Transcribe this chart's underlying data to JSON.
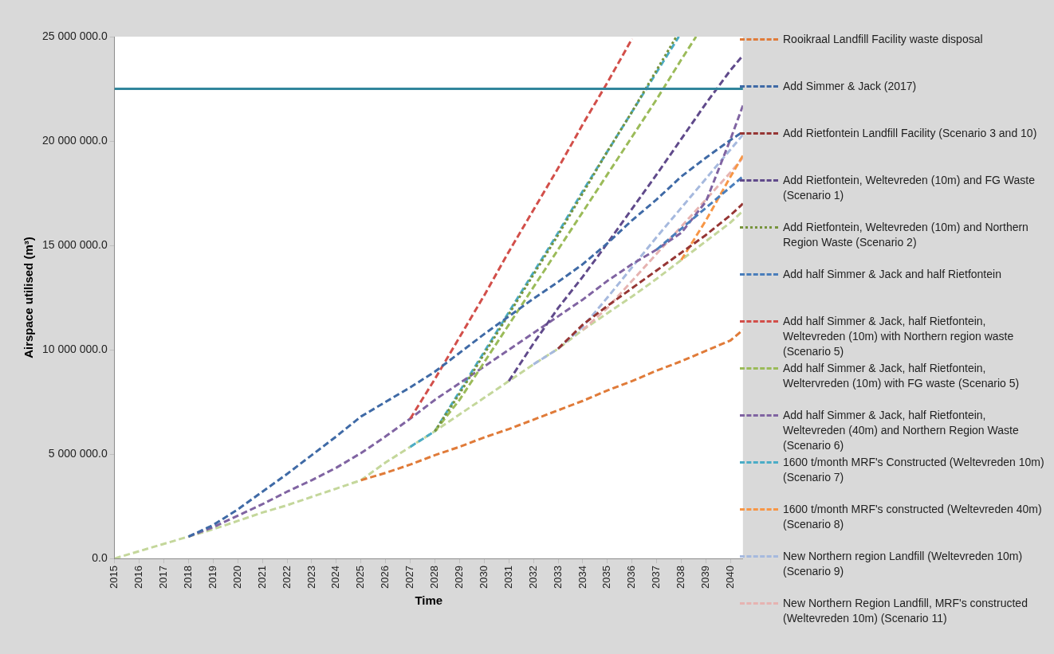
{
  "chart_data": {
    "type": "line",
    "xlabel": "Time",
    "ylabel": "Airspace utilised (m³)",
    "line_style": "dashed",
    "marker": "none",
    "legend": "right",
    "x": [
      2015,
      2016,
      2017,
      2018,
      2019,
      2020,
      2021,
      2022,
      2023,
      2024,
      2025,
      2026,
      2027,
      2028,
      2029,
      2030,
      2031,
      2032,
      2033,
      2034,
      2035,
      2036,
      2037,
      2038,
      2039,
      2040,
      2040.5
    ],
    "xlim": [
      2015,
      2040.5
    ],
    "xticks": [
      2015,
      2016,
      2017,
      2018,
      2019,
      2020,
      2021,
      2022,
      2023,
      2024,
      2025,
      2026,
      2027,
      2028,
      2029,
      2030,
      2031,
      2032,
      2033,
      2034,
      2035,
      2036,
      2037,
      2038,
      2039,
      2040
    ],
    "ylim": [
      0,
      25000000
    ],
    "yticks": [
      {
        "value": 0,
        "label": "0.0"
      },
      {
        "value": 5000000,
        "label": "5 000 000.0"
      },
      {
        "value": 10000000,
        "label": "10 000 000.0"
      },
      {
        "value": 15000000,
        "label": "15 000 000.0"
      },
      {
        "value": 20000000,
        "label": "20 000 000.0"
      },
      {
        "value": 25000000,
        "label": "25 000 000.0"
      }
    ],
    "ref_lines": [
      {
        "axis": "y",
        "value": 22500000,
        "color": "#31859c",
        "line_style": "solid"
      }
    ],
    "series": [
      {
        "name": "Rooikraal Landfill Facility waste disposal",
        "color": "#e07b39",
        "values": [
          null,
          null,
          null,
          null,
          null,
          null,
          null,
          null,
          null,
          null,
          3750000,
          4100000,
          4500000,
          4950000,
          5350000,
          5800000,
          6200000,
          6650000,
          7100000,
          7550000,
          8050000,
          8500000,
          9000000,
          9450000,
          9950000,
          10450000,
          10950000
        ]
      },
      {
        "name": "Add Simmer & Jack (2017)",
        "color": "#3f6aa6",
        "values": [
          null,
          null,
          null,
          1050000,
          1600000,
          2350000,
          3200000,
          4050000,
          4950000,
          5850000,
          6800000,
          7500000,
          8200000,
          8950000,
          9850000,
          10750000,
          11600000,
          12450000,
          13250000,
          14100000,
          15100000,
          16200000,
          17200000,
          18300000,
          19200000,
          20050000,
          20450000
        ]
      },
      {
        "name": "Add Rietfontein Landfill Facility (Scenario 3 and 10)",
        "color": "#963634",
        "values": [
          null,
          null,
          null,
          null,
          null,
          null,
          null,
          null,
          null,
          null,
          null,
          null,
          null,
          null,
          null,
          null,
          null,
          null,
          10050000,
          11200000,
          12100000,
          12950000,
          13800000,
          14650000,
          15500000,
          16450000,
          17000000
        ]
      },
      {
        "name": "Add Rietfontein, Weltevreden (10m) and FG Waste (Scenario 1)",
        "color": "#604a8b",
        "values": [
          null,
          null,
          null,
          null,
          null,
          null,
          null,
          null,
          null,
          null,
          null,
          null,
          null,
          null,
          null,
          null,
          8500000,
          10300000,
          12000000,
          13500000,
          15100000,
          16750000,
          18400000,
          20100000,
          21800000,
          23400000,
          24100000
        ]
      },
      {
        "name": "Add Rietfontein, Weltevreden (10m) and Northern Region Waste (Scenario 2)",
        "color": "#77933c",
        "line_style": "dotted",
        "x": [
          2028,
          2029,
          2030,
          2031,
          2032,
          2033,
          2034,
          2035,
          2036,
          2037,
          2037.8
        ],
        "values": [
          6100000,
          7900000,
          9800000,
          11700000,
          13600000,
          15500000,
          17500000,
          19500000,
          21400000,
          23400000,
          25000000
        ]
      },
      {
        "name": "Add half Simmer & Jack and half Rietfontein",
        "color": "#4a7ebb",
        "values": [
          null,
          null,
          null,
          null,
          null,
          null,
          null,
          null,
          null,
          null,
          null,
          null,
          null,
          null,
          null,
          null,
          null,
          null,
          null,
          null,
          null,
          null,
          14800000,
          15800000,
          16800000,
          17800000,
          18300000
        ]
      },
      {
        "name": "Add half Simmer & Jack, half Rietfontein, Weltevreden (10m) with Northern region waste (Scenario 5)",
        "color": "#d24f4a",
        "x": [
          2027,
          2028,
          2029,
          2030,
          2031,
          2032,
          2033,
          2034,
          2035,
          2036
        ],
        "values": [
          6700000,
          8600000,
          10600000,
          12600000,
          14700000,
          16700000,
          18700000,
          20800000,
          22800000,
          24900000
        ]
      },
      {
        "name": "Add half Simmer & Jack, half Rietfontein, Weltervreden (10m) with FG waste (Scenario 5)",
        "color": "#9bbb59",
        "x": [
          2028,
          2029,
          2030,
          2031,
          2032,
          2033,
          2034,
          2035,
          2036,
          2037,
          2038,
          2038.6
        ],
        "values": [
          6100000,
          7600000,
          9400000,
          11200000,
          13000000,
          14800000,
          16600000,
          18400000,
          20200000,
          22000000,
          23900000,
          25000000
        ]
      },
      {
        "name": "Add half Simmer & Jack, half Rietfontein, Weltevreden (40m) and Northern Region Waste (Scenario 6)",
        "color": "#8064a2",
        "values": [
          null,
          null,
          null,
          1050000,
          1500000,
          2050000,
          2600000,
          3200000,
          3750000,
          4350000,
          5050000,
          5850000,
          6700000,
          7600000,
          8400000,
          9200000,
          10000000,
          10800000,
          11600000,
          12400000,
          13300000,
          14100000,
          14800000,
          15600000,
          17100000,
          20100000,
          21700000
        ]
      },
      {
        "name": "1600 t/month MRF's Constructed (Weltevreden 10m) (Scenario 7)",
        "color": "#4bacc6",
        "x": [
          2027,
          2028,
          2029,
          2030,
          2031,
          2032,
          2033,
          2034,
          2035,
          2036,
          2037,
          2037.9
        ],
        "values": [
          5350000,
          6100000,
          8000000,
          9900000,
          11800000,
          13700000,
          15600000,
          17600000,
          19500000,
          21400000,
          23300000,
          25000000
        ]
      },
      {
        "name": "1600 t/month MRF's constructed (Weltevreden 40m) (Scenario 8)",
        "color": "#f79646",
        "values": [
          null,
          null,
          null,
          null,
          null,
          null,
          null,
          null,
          null,
          null,
          null,
          null,
          null,
          null,
          null,
          null,
          null,
          null,
          null,
          null,
          null,
          null,
          null,
          14300000,
          16200000,
          18300000,
          19300000
        ]
      },
      {
        "name": "New Northern region Landfill (Weltevreden 10m) (Scenario 9)",
        "color": "#a6b9de",
        "values": [
          null,
          null,
          null,
          null,
          null,
          null,
          null,
          null,
          null,
          null,
          null,
          null,
          null,
          null,
          null,
          null,
          null,
          9300000,
          10050000,
          11100000,
          12500000,
          13950000,
          15400000,
          16800000,
          18200000,
          19600000,
          20300000
        ]
      },
      {
        "name": "New Northern Region Landfill, MRF's constructed (Weltevreden 10m) (Scenario 11)",
        "color": "#e6b3b1",
        "values": [
          null,
          null,
          null,
          null,
          null,
          null,
          null,
          null,
          null,
          null,
          null,
          null,
          null,
          null,
          null,
          null,
          null,
          null,
          null,
          10950000,
          12000000,
          13300000,
          14600000,
          15900000,
          17200000,
          18500000,
          19200000
        ]
      },
      {
        "color": "#c4d79b",
        "values": [
          0,
          350000,
          700000,
          1050000,
          1400000,
          1800000,
          2200000,
          2550000,
          2950000,
          3350000,
          3750000,
          4600000,
          5350000,
          6100000,
          6900000,
          7700000,
          8500000,
          9300000,
          10050000,
          10950000,
          11750000,
          12550000,
          13400000,
          14300000,
          15200000,
          16100000,
          16650000
        ]
      }
    ]
  }
}
